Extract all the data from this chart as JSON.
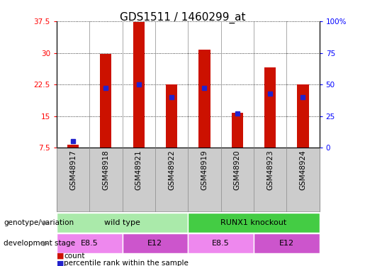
{
  "title": "GDS1511 / 1460299_at",
  "samples": [
    "GSM48917",
    "GSM48918",
    "GSM48921",
    "GSM48922",
    "GSM48919",
    "GSM48920",
    "GSM48923",
    "GSM48924"
  ],
  "counts": [
    8.2,
    29.8,
    37.3,
    22.5,
    30.7,
    15.7,
    26.5,
    22.5
  ],
  "percentile_ranks": [
    5,
    47,
    50,
    40,
    47,
    27,
    43,
    40
  ],
  "ylim_left": [
    7.5,
    37.5
  ],
  "ylim_right": [
    0,
    100
  ],
  "yticks_left": [
    7.5,
    15.0,
    22.5,
    30.0,
    37.5
  ],
  "yticks_right": [
    0,
    25,
    50,
    75,
    100
  ],
  "ytick_labels_left": [
    "7.5",
    "15",
    "22.5",
    "30",
    "37.5"
  ],
  "ytick_labels_right": [
    "0",
    "25",
    "50",
    "75",
    "100%"
  ],
  "bar_color": "#CC1100",
  "marker_color": "#2222CC",
  "grid_color": "#000000",
  "background_color": "#FFFFFF",
  "xtick_box_color": "#CCCCCC",
  "genotype_groups": [
    {
      "label": "wild type",
      "start": 0,
      "end": 4,
      "color": "#AAEAAA"
    },
    {
      "label": "RUNX1 knockout",
      "start": 4,
      "end": 8,
      "color": "#44CC44"
    }
  ],
  "dev_stage_groups": [
    {
      "label": "E8.5",
      "start": 0,
      "end": 2,
      "color": "#EE88EE"
    },
    {
      "label": "E12",
      "start": 2,
      "end": 4,
      "color": "#CC55CC"
    },
    {
      "label": "E8.5",
      "start": 4,
      "end": 6,
      "color": "#EE88EE"
    },
    {
      "label": "E12",
      "start": 6,
      "end": 8,
      "color": "#CC55CC"
    }
  ],
  "legend_count_color": "#CC1100",
  "legend_percentile_color": "#2222CC",
  "title_fontsize": 11,
  "tick_fontsize": 7.5,
  "label_fontsize": 7.5,
  "bar_width": 0.35,
  "marker_size": 4
}
